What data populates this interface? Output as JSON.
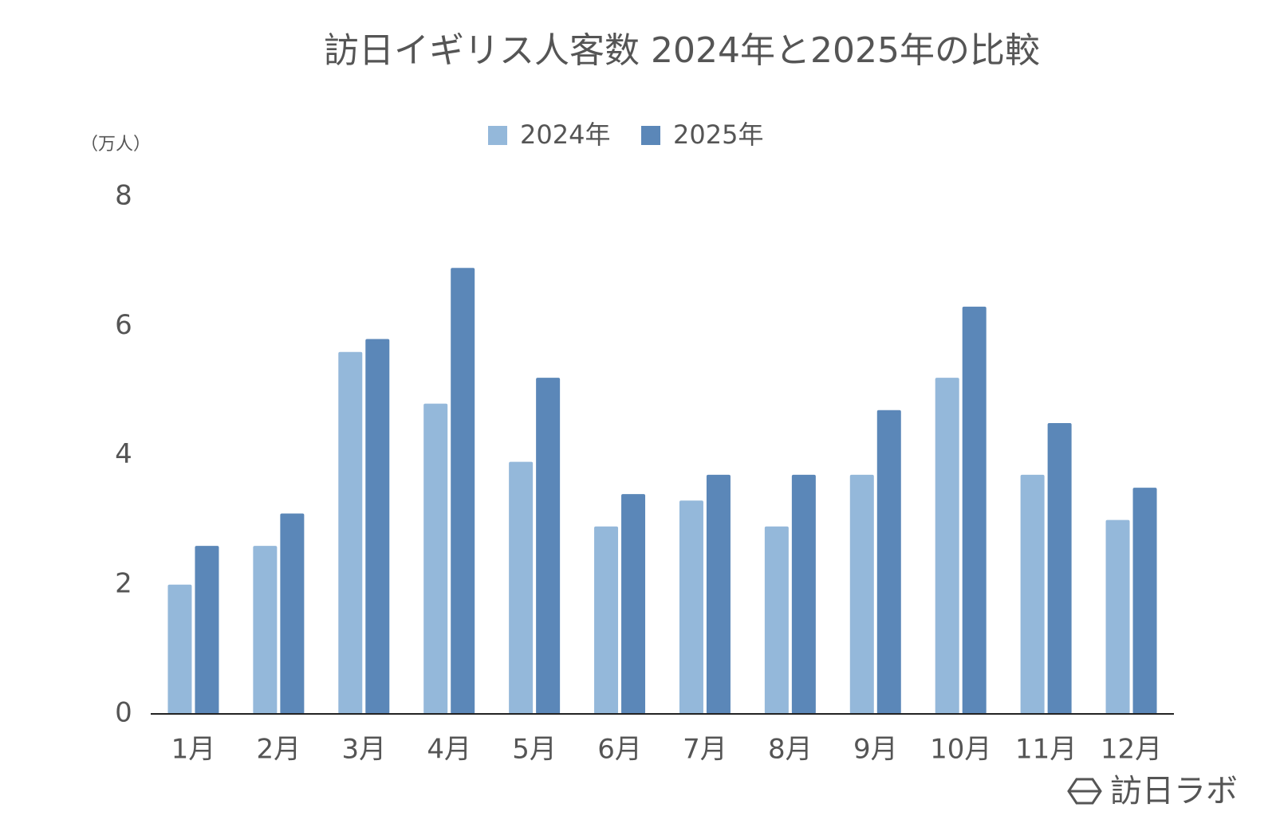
{
  "chart_data": {
    "type": "bar",
    "title": "訪日イギリス人客数 2024年と2025年の比較",
    "y_unit_label": "（万人）",
    "categories": [
      "1月",
      "2月",
      "3月",
      "4月",
      "5月",
      "6月",
      "7月",
      "8月",
      "9月",
      "10月",
      "11月",
      "12月"
    ],
    "series": [
      {
        "name": "2024年",
        "color": "#94b8da",
        "values": [
          2.0,
          2.6,
          5.6,
          4.8,
          3.9,
          2.9,
          3.3,
          2.9,
          3.7,
          5.2,
          3.7,
          3.0
        ]
      },
      {
        "name": "2025年",
        "color": "#5b87b8",
        "values": [
          2.6,
          3.1,
          5.8,
          6.9,
          5.2,
          3.4,
          3.7,
          3.7,
          4.7,
          6.3,
          4.5,
          3.5
        ]
      }
    ],
    "ylim": [
      0,
      8
    ],
    "yticks": [
      0,
      2,
      4,
      6,
      8
    ],
    "grid": false,
    "legend": "top",
    "watermark": "訪日ラボ"
  }
}
